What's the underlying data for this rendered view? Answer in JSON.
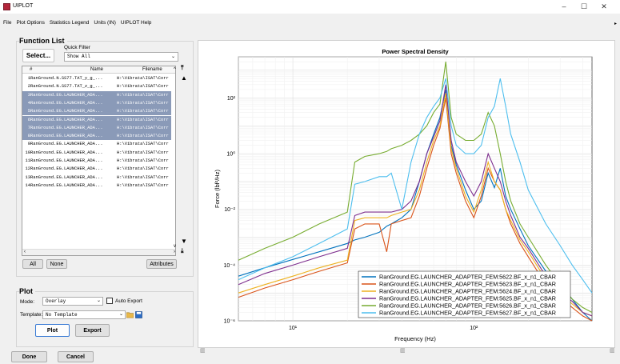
{
  "window": {
    "title": "UIPLOT",
    "minimize": "–",
    "maximize": "☐",
    "close": "✕"
  },
  "menu": [
    "File",
    "Plot Options",
    "Statistics Legend",
    "Units (IN)",
    "UIPLOT Help"
  ],
  "menu_arrow": "▸",
  "function_list": {
    "title": "Function List",
    "select_label": "Select...",
    "quick_filter_label": "Quick Filter",
    "quick_filter_value": "Show All",
    "columns": [
      "#",
      "Name",
      "Filename"
    ],
    "rows": [
      {
        "n": "1",
        "name": "RanGround.N.SS77.TAT_y_g_...",
        "file": "H:\\Vibrata\\ISAT\\Corr",
        "selected": false
      },
      {
        "n": "2",
        "name": "RanGround.N.SS77.TAT_z_g_...",
        "file": "H:\\Vibrata\\ISAT\\Corr",
        "selected": false
      },
      {
        "n": "3",
        "name": "RanGround.EG.LAUNCHER_ADA...",
        "file": "H:\\Vibrata\\ISAT\\Corr",
        "selected": true
      },
      {
        "n": "4",
        "name": "RanGround.EG.LAUNCHER_ADA...",
        "file": "H:\\Vibrata\\ISAT\\Corr",
        "selected": true
      },
      {
        "n": "5",
        "name": "RanGround.EG.LAUNCHER_ADA...",
        "file": "H:\\Vibrata\\ISAT\\Corr",
        "selected": true
      },
      {
        "n": "6",
        "name": "RanGround.EG.LAUNCHER_ADA...",
        "file": "H:\\Vibrata\\ISAT\\Corr",
        "selected": true
      },
      {
        "n": "7",
        "name": "RanGround.EG.LAUNCHER_ADA...",
        "file": "H:\\Vibrata\\ISAT\\Corr",
        "selected": true
      },
      {
        "n": "8",
        "name": "RanGround.EG.LAUNCHER_ADA...",
        "file": "H:\\Vibrata\\ISAT\\Corr",
        "selected": true
      },
      {
        "n": "9",
        "name": "RanGround.EG.LAUNCHER_ADA...",
        "file": "H:\\Vibrata\\ISAT\\Corr",
        "selected": false
      },
      {
        "n": "10",
        "name": "RanGround.EG.LAUNCHER_ADA...",
        "file": "H:\\Vibrata\\ISAT\\Corr",
        "selected": false
      },
      {
        "n": "11",
        "name": "RanGround.EG.LAUNCHER_ADA...",
        "file": "H:\\Vibrata\\ISAT\\Corr",
        "selected": false
      },
      {
        "n": "12",
        "name": "RanGround.EG.LAUNCHER_ADA...",
        "file": "H:\\Vibrata\\ISAT\\Corr",
        "selected": false
      },
      {
        "n": "13",
        "name": "RanGround.EG.LAUNCHER_ADA...",
        "file": "H:\\Vibrata\\ISAT\\Corr",
        "selected": false
      },
      {
        "n": "14",
        "name": "RanGround.EG.LAUNCHER_ADA...",
        "file": "H:\\Vibrata\\ISAT\\Corr",
        "selected": false
      }
    ],
    "all_label": "All",
    "none_label": "None",
    "attributes_label": "Attributes"
  },
  "plot": {
    "title": "Plot",
    "mode_label": "Mode:",
    "mode_value": "Overlay",
    "auto_export_label": "Auto Export",
    "template_label": "Template:",
    "template_value": "No Template",
    "plot_label": "Plot",
    "export_label": "Export"
  },
  "done_label": "Done",
  "cancel_label": "Cancel",
  "colors": {
    "blue": "#0072bd",
    "orange": "#d95319",
    "yellow": "#edb120",
    "purple": "#7e2f8e",
    "green": "#77ac30",
    "cyan": "#4dbeee"
  },
  "chart_data": {
    "type": "line",
    "title": "Power Spectral Density",
    "xlabel": "Frequency (Hz)",
    "ylabel": "Force (lbf²/Hz)",
    "xscale": "log",
    "yscale": "log",
    "xlim": [
      5,
      450
    ],
    "ylim": [
      1e-06,
      3000
    ],
    "x_ticks": [
      "10¹",
      "10²"
    ],
    "y_ticks": [
      "10⁻⁶",
      "10⁻⁴",
      "10⁻²",
      "10⁰",
      "10²"
    ],
    "grid": true,
    "legend_position": "bottom-right",
    "x": [
      5,
      7,
      10,
      14,
      20,
      22,
      25,
      30,
      33,
      35,
      40,
      45,
      50,
      55,
      60,
      65,
      70,
      75,
      80,
      90,
      100,
      110,
      120,
      130,
      140,
      150,
      160,
      180,
      200,
      250,
      300,
      350,
      400,
      450
    ],
    "series": [
      {
        "name": "RanGround.EG.LAUNCHER_ADAPTER_FEM:5622.BF_x_n1_CBAR",
        "color": "blue",
        "values": [
          4e-05,
          8e-05,
          0.00016,
          0.0003,
          0.0006,
          0.0008,
          0.001,
          0.0015,
          0.0025,
          0.003,
          0.005,
          0.01,
          0.1,
          1,
          5,
          20,
          200,
          2,
          0.4,
          0.05,
          0.01,
          0.02,
          0.2,
          0.06,
          0.3,
          0.03,
          0.01,
          0.002,
          0.0005,
          6e-05,
          2e-05,
          6e-06,
          2e-06,
          1e-06
        ]
      },
      {
        "name": "RanGround.EG.LAUNCHER_ADAPTER_FEM:5623.BF_x_n1_CBAR",
        "color": "orange",
        "values": [
          7e-06,
          1.5e-05,
          3e-05,
          6e-05,
          0.00012,
          0.002,
          0.003,
          0.003,
          0.0003,
          0.003,
          0.004,
          0.005,
          0.03,
          0.3,
          2,
          8,
          100,
          1,
          0.2,
          0.02,
          0.005,
          0.03,
          0.3,
          0.1,
          0.05,
          0.01,
          0.003,
          0.0006,
          0.0002,
          2e-05,
          7e-06,
          3e-06,
          1.5e-06,
          1e-06
        ]
      },
      {
        "name": "RanGround.EG.LAUNCHER_ADAPTER_FEM:5624.BF_x_n1_CBAR",
        "color": "yellow",
        "values": [
          1e-05,
          2e-05,
          4e-05,
          8e-05,
          0.00015,
          0.004,
          0.005,
          0.005,
          0.005,
          0.006,
          0.008,
          0.01,
          0.05,
          0.5,
          3,
          10,
          150,
          1.5,
          0.3,
          0.03,
          0.008,
          0.05,
          0.5,
          0.1,
          0.05,
          0.01,
          0.004,
          0.0008,
          0.0003,
          3e-05,
          1e-05,
          4e-06,
          2e-06,
          1.5e-06
        ]
      },
      {
        "name": "RanGround.EG.LAUNCHER_ADAPTER_FEM:5625.BF_x_n1_CBAR",
        "color": "purple",
        "values": [
          2e-05,
          5e-05,
          0.0001,
          0.0002,
          0.0004,
          0.006,
          0.008,
          0.008,
          0.008,
          0.008,
          0.01,
          0.02,
          0.1,
          1,
          4,
          15,
          300,
          3,
          0.5,
          0.1,
          0.03,
          0.1,
          1,
          0.3,
          0.1,
          0.02,
          0.006,
          0.001,
          0.0004,
          4e-05,
          1e-05,
          5e-06,
          2e-06,
          1.5e-06
        ]
      },
      {
        "name": "RanGround.EG.LAUNCHER_ADAPTER_FEM:5626.BF_x_n1_CBAR",
        "color": "green",
        "values": [
          0.00015,
          0.0004,
          0.001,
          0.003,
          0.008,
          0.5,
          0.8,
          1,
          1.2,
          1.5,
          2,
          3,
          5,
          10,
          30,
          60,
          2000,
          20,
          5,
          3,
          3,
          5,
          30,
          10,
          1,
          0.1,
          0.02,
          0.003,
          0.001,
          0.0001,
          2e-05,
          6e-06,
          3e-06,
          2e-06
        ]
      },
      {
        "name": "RanGround.EG.LAUNCHER_ADAPTER_FEM:5627.BF_x_n1_CBAR",
        "color": "cyan",
        "values": [
          3e-05,
          8e-05,
          0.0002,
          0.0006,
          0.002,
          0.08,
          0.1,
          0.15,
          0.15,
          0.2,
          0.01,
          0.5,
          5,
          20,
          50,
          100,
          500,
          10,
          2,
          1,
          1,
          2,
          20,
          50,
          500,
          50,
          5,
          0.5,
          0.05,
          0.003,
          0.0005,
          0.0001,
          3e-05,
          1e-05
        ]
      }
    ]
  }
}
